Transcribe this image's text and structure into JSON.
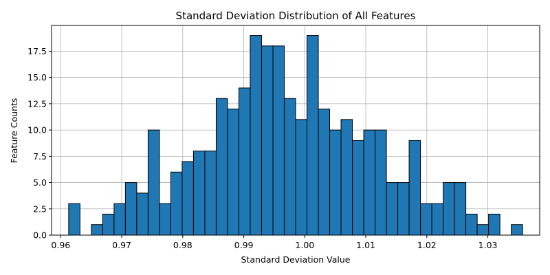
{
  "chart_data": {
    "type": "bar",
    "title": "Standard Deviation Distribution of All Features",
    "xlabel": "Standard Deviation Value",
    "ylabel": "Feature Counts",
    "bar_color": "#1f77b4",
    "edge_color": "#000000",
    "grid": true,
    "xlim": [
      0.9585,
      1.0385
    ],
    "ylim": [
      0,
      19.95
    ],
    "xticks": [
      0.96,
      0.97,
      0.98,
      0.99,
      1.0,
      1.01,
      1.02,
      1.03
    ],
    "xtick_labels": [
      "0.96",
      "0.97",
      "0.98",
      "0.99",
      "1.00",
      "1.01",
      "1.02",
      "1.03"
    ],
    "yticks": [
      0,
      2.5,
      5,
      7.5,
      10,
      12.5,
      15,
      17.5
    ],
    "ytick_labels": [
      "0.0",
      "2.5",
      "5.0",
      "7.5",
      "10.0",
      "12.5",
      "15.0",
      "17.5"
    ],
    "bin_start": 0.9613,
    "bin_width": 0.00186,
    "values": [
      3,
      0,
      1,
      2,
      3,
      5,
      4,
      10,
      3,
      6,
      7,
      8,
      8,
      13,
      12,
      14,
      19,
      18,
      18,
      13,
      11,
      19,
      12,
      10,
      11,
      9,
      10,
      10,
      5,
      5,
      9,
      3,
      3,
      5,
      5,
      2,
      1,
      2,
      0,
      1
    ]
  }
}
